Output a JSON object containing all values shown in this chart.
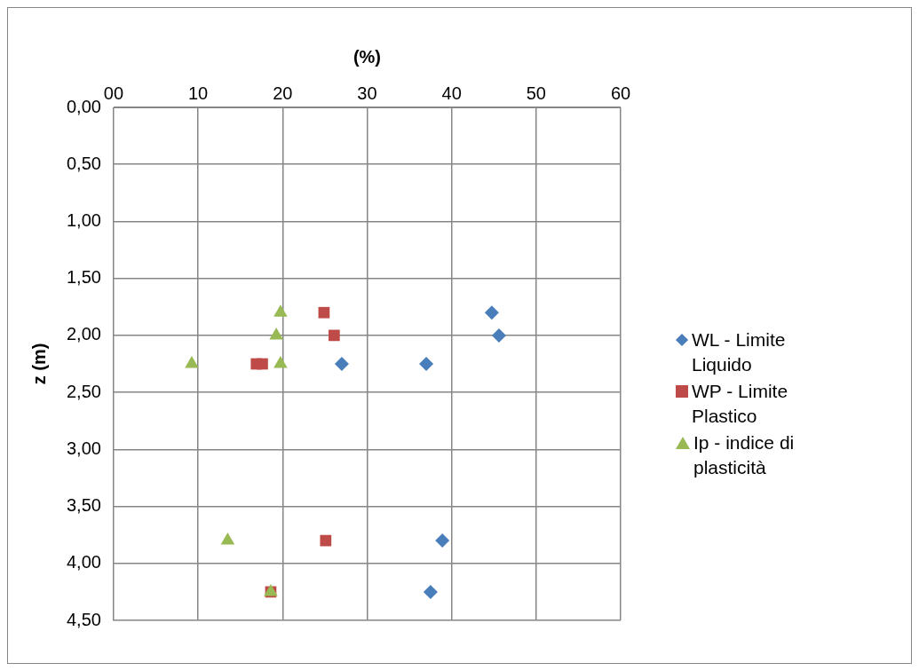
{
  "chart_data": {
    "type": "scatter",
    "xlabel": "(%)",
    "ylabel": "z (m)",
    "xlim": [
      0,
      60
    ],
    "xticks": [
      {
        "value": 0,
        "label": "00"
      },
      10,
      20,
      30,
      40,
      50,
      60
    ],
    "ylim": [
      4.5,
      0
    ],
    "yticks": [
      {
        "value": 0,
        "label": "0,00"
      },
      {
        "value": 0.5,
        "label": "0,50"
      },
      {
        "value": 1,
        "label": "1,00"
      },
      {
        "value": 1.5,
        "label": "1,50"
      },
      {
        "value": 2,
        "label": "2,00"
      },
      {
        "value": 2.5,
        "label": "2,50"
      },
      {
        "value": 3,
        "label": "3,00"
      },
      {
        "value": 3.5,
        "label": "3,50"
      },
      {
        "value": 4,
        "label": "4,00"
      },
      {
        "value": 4.5,
        "label": "4,50"
      }
    ],
    "grid": true,
    "legend": "right",
    "series": [
      {
        "name": "WL - Limite Liquido",
        "color": "#4a7ebb",
        "marker": "diamond",
        "x": [
          44.75,
          45.6,
          27,
          37,
          38.9,
          37.5
        ],
        "values": [
          1.8,
          2,
          2.25,
          2.25,
          3.8,
          4.25
        ]
      },
      {
        "name": "WP - Limite Plastico",
        "color": "#be4b48",
        "marker": "square",
        "x": [
          24.9,
          26.1,
          16.9,
          17.6,
          25.1,
          18.6
        ],
        "values": [
          1.8,
          2,
          2.25,
          2.25,
          3.8,
          4.25
        ]
      },
      {
        "name": "Ip - indice di plasticità",
        "color": "#98b954",
        "marker": "triangle",
        "x": [
          19.75,
          19.25,
          9.25,
          19.75,
          13.5,
          18.6
        ],
        "values": [
          1.8,
          2,
          2.25,
          2.25,
          3.8,
          4.25
        ]
      }
    ]
  }
}
